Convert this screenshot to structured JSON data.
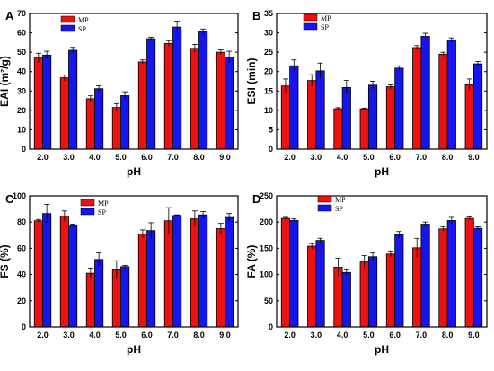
{
  "colors": {
    "MP": "#ee1111",
    "SP": "#1515ee"
  },
  "chart_data": [
    {
      "panel": "A",
      "type": "bar",
      "ylabel": "EAI (m²/g)",
      "xlabel": "pH",
      "categories": [
        "2.0",
        "3.0",
        "4.0",
        "5.0",
        "6.0",
        "7.0",
        "8.0",
        "9.0"
      ],
      "ylim": [
        0,
        70
      ],
      "yticks": [
        0,
        10,
        20,
        30,
        40,
        50,
        60,
        70
      ],
      "legend_position": "top-left",
      "series": [
        {
          "name": "MP",
          "values": [
            47,
            36.8,
            26,
            21.5,
            45,
            54.5,
            52,
            50
          ],
          "errors": [
            2.5,
            1.5,
            1.5,
            2,
            1,
            1.5,
            2,
            1.2
          ]
        },
        {
          "name": "SP",
          "values": [
            48.5,
            51,
            31.2,
            27.6,
            57,
            63,
            60.5,
            47.5
          ],
          "errors": [
            2,
            1.5,
            1.5,
            2,
            0.8,
            3,
            1.5,
            3
          ]
        }
      ]
    },
    {
      "panel": "B",
      "type": "bar",
      "ylabel": "ESI (min)",
      "xlabel": "pH",
      "categories": [
        "2.0",
        "3.0",
        "4.0",
        "5.0",
        "6.0",
        "7.0",
        "8.0",
        "9.0"
      ],
      "ylim": [
        0,
        35
      ],
      "yticks": [
        0,
        5,
        10,
        15,
        20,
        25,
        30,
        35
      ],
      "legend_position": "top-left",
      "series": [
        {
          "name": "MP",
          "values": [
            16.3,
            17.7,
            10.4,
            10.4,
            16.1,
            26.2,
            24.5,
            16.6
          ],
          "errors": [
            1.8,
            1.5,
            0.3,
            0.2,
            0.5,
            0.5,
            0.5,
            1.5
          ]
        },
        {
          "name": "SP",
          "values": [
            21.5,
            20.2,
            15.9,
            16.5,
            20.9,
            29.1,
            28.1,
            22
          ],
          "errors": [
            1.5,
            2,
            1.8,
            1,
            0.6,
            0.8,
            0.6,
            0.6
          ]
        }
      ]
    },
    {
      "panel": "C",
      "type": "bar",
      "ylabel": "FS (%)",
      "xlabel": "pH",
      "categories": [
        "2.0",
        "3.0",
        "4.0",
        "5.0",
        "6.0",
        "7.0",
        "8.0",
        "9.0"
      ],
      "ylim": [
        0,
        100
      ],
      "yticks": [
        0,
        20,
        40,
        60,
        80,
        100
      ],
      "legend_position": "top-center",
      "series": [
        {
          "name": "MP",
          "values": [
            81,
            84.5,
            41,
            43.5,
            71,
            81,
            82.5,
            75
          ],
          "errors": [
            1,
            4,
            4,
            7,
            3,
            10,
            6,
            4
          ]
        },
        {
          "name": "SP",
          "values": [
            86.5,
            77.5,
            51.5,
            46,
            73.5,
            85,
            85.5,
            83.5
          ],
          "errors": [
            7,
            1,
            5,
            1,
            6,
            0.5,
            2.5,
            3
          ]
        }
      ]
    },
    {
      "panel": "D",
      "type": "bar",
      "ylabel": "FA (%)",
      "xlabel": "pH",
      "categories": [
        "2.0",
        "3.0",
        "4.0",
        "5.0",
        "6.0",
        "7.0",
        "8.0",
        "9.0"
      ],
      "ylim": [
        0,
        250
      ],
      "yticks": [
        0,
        50,
        100,
        150,
        200,
        250
      ],
      "legend_position": "top-left",
      "series": [
        {
          "name": "MP",
          "values": [
            207,
            154,
            114,
            124,
            139,
            151,
            187,
            207
          ],
          "errors": [
            2,
            5,
            17,
            12,
            6,
            18,
            4,
            3
          ]
        },
        {
          "name": "SP",
          "values": [
            203,
            165,
            104,
            134,
            176,
            196,
            203,
            188
          ],
          "errors": [
            3,
            4,
            5,
            7,
            6,
            4,
            6,
            3
          ]
        }
      ]
    }
  ]
}
